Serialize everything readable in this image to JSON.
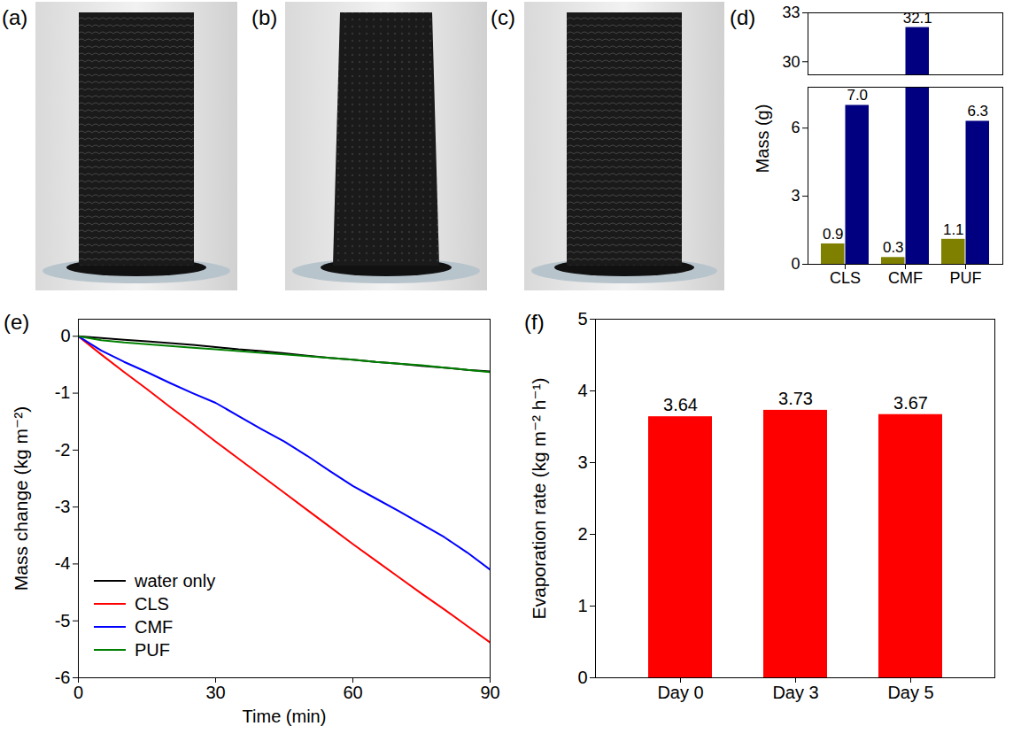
{
  "images": [
    {
      "label": "(a)"
    },
    {
      "label": "(b)"
    },
    {
      "label": "(c)"
    }
  ],
  "chart_data": [
    {
      "panel": "(d)",
      "type": "bar",
      "categories": [
        "CLS",
        "CMF",
        "PUF"
      ],
      "series": [
        {
          "color": "#808000",
          "values": [
            0.9,
            0.3,
            1.1
          ],
          "value_labels": [
            "0.9",
            "0.3",
            "1.1"
          ]
        },
        {
          "color": "#000080",
          "values": [
            7.0,
            32.1,
            6.3
          ],
          "value_labels": [
            "7.0",
            "32.1",
            "6.3"
          ]
        }
      ],
      "ylabel": "Mass (g)",
      "ylim": [
        0,
        33
      ],
      "ybreak": [
        7.8,
        29.2
      ],
      "yticks": [
        0,
        3,
        6,
        30,
        33
      ],
      "data_labels": true
    },
    {
      "panel": "(e)",
      "type": "line",
      "x": [
        0,
        5,
        10,
        15,
        20,
        25,
        30,
        35,
        40,
        45,
        50,
        55,
        60,
        65,
        70,
        75,
        80,
        85,
        90
      ],
      "series": [
        {
          "name": "water only",
          "color": "#000000",
          "values": [
            0,
            -0.03,
            -0.06,
            -0.09,
            -0.12,
            -0.15,
            -0.19,
            -0.23,
            -0.26,
            -0.3,
            -0.34,
            -0.38,
            -0.41,
            -0.45,
            -0.48,
            -0.52,
            -0.55,
            -0.59,
            -0.62
          ]
        },
        {
          "name": "CLS",
          "color": "#ff0000",
          "values": [
            0,
            -0.32,
            -0.63,
            -0.93,
            -1.24,
            -1.54,
            -1.85,
            -2.15,
            -2.45,
            -2.75,
            -3.05,
            -3.35,
            -3.65,
            -3.94,
            -4.23,
            -4.52,
            -4.8,
            -5.09,
            -5.38
          ]
        },
        {
          "name": "CMF",
          "color": "#0000ff",
          "values": [
            0,
            -0.25,
            -0.45,
            -0.63,
            -0.82,
            -1.0,
            -1.17,
            -1.4,
            -1.63,
            -1.85,
            -2.1,
            -2.37,
            -2.63,
            -2.85,
            -3.07,
            -3.3,
            -3.53,
            -3.8,
            -4.1
          ]
        },
        {
          "name": "PUF",
          "color": "#008000",
          "values": [
            0,
            -0.07,
            -0.11,
            -0.14,
            -0.17,
            -0.2,
            -0.23,
            -0.26,
            -0.29,
            -0.32,
            -0.35,
            -0.38,
            -0.41,
            -0.45,
            -0.48,
            -0.51,
            -0.55,
            -0.59,
            -0.63
          ]
        }
      ],
      "xlabel": "Time (min)",
      "ylabel": "Mass change (kg m⁻²)",
      "xlim": [
        0,
        90
      ],
      "xticks": [
        0,
        30,
        60,
        90
      ],
      "ylim": [
        -6,
        0.3
      ],
      "yticks": [
        0,
        -1,
        -2,
        -3,
        -4,
        -5,
        -6
      ],
      "legend": "lower left"
    },
    {
      "panel": "(f)",
      "type": "bar",
      "categories": [
        "Day 0",
        "Day 3",
        "Day 5"
      ],
      "values": [
        3.64,
        3.73,
        3.67
      ],
      "color": "#ff0000",
      "ylabel": "Evaporation rate (kg m⁻² h⁻¹)",
      "ylim": [
        0,
        5
      ],
      "yticks": [
        0,
        1,
        2,
        3,
        4,
        5
      ],
      "data_labels": true
    }
  ]
}
